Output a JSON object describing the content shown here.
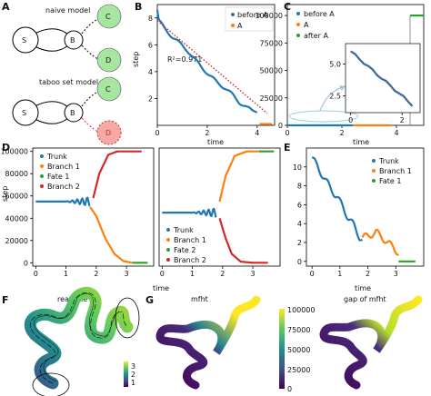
{
  "panel_labels": {
    "A": "A",
    "B": "B",
    "C": "C",
    "D": "D",
    "E": "E",
    "F": "F",
    "G": "G"
  },
  "panel_a": {
    "naive_title": "naive model",
    "taboo_title": "taboo set model",
    "nodes": {
      "s": "S",
      "b": "B",
      "c": "C",
      "d": "D"
    },
    "colors": {
      "green": "#a6e6a0",
      "red": "#f4a9a3",
      "white": "#ffffff"
    }
  },
  "panel_b": {
    "annotation": "R²=0.971",
    "xlabel": "time",
    "ylabel": "step",
    "xticks": [
      "0",
      "2",
      "4"
    ],
    "yticks": [
      "2",
      "4",
      "6",
      "8"
    ],
    "legend": [
      "before A",
      "A"
    ]
  },
  "panel_c": {
    "xlabel": "time",
    "xticks": [
      "0",
      "2",
      "4"
    ],
    "yticks": [
      "0",
      "25000",
      "50000",
      "75000",
      "100000"
    ],
    "legend": [
      "before A",
      "A",
      "after A"
    ],
    "inset_xticks": [
      "0",
      "2"
    ],
    "inset_yticks": [
      "2.5",
      "5.0"
    ]
  },
  "panel_d": {
    "xlabel": "time",
    "ylabel": "step",
    "yticks": [
      "0",
      "20000",
      "40000",
      "60000",
      "80000",
      "100000"
    ],
    "xticks_left": [
      "0",
      "1",
      "2",
      "3"
    ],
    "xticks_right": [
      "0",
      "1",
      "2",
      "3"
    ],
    "legend_left": [
      "Trunk",
      "Branch 1",
      "Fate 1",
      "Branch 2"
    ],
    "legend_right": [
      "Trunk",
      "Branch 1",
      "Fate 2",
      "Branch 2"
    ]
  },
  "panel_e": {
    "xlabel": "time",
    "xticks": [
      "0",
      "1",
      "2",
      "3"
    ],
    "yticks": [
      "0",
      "2",
      "4",
      "6",
      "8",
      "10"
    ],
    "legend": [
      "Trunk",
      "Branch 1",
      "Fate 1"
    ]
  },
  "panel_f": {
    "title": "realtime",
    "cbar_ticks": [
      "3",
      "2",
      "1"
    ]
  },
  "panel_g": {
    "title_left": "mfht",
    "title_right": "gap of mfht",
    "cbar_ticks": [
      "100000",
      "75000",
      "50000",
      "25000",
      "0"
    ]
  },
  "colors": {
    "blue": "#1f77b4",
    "orange": "#ff7f0e",
    "green": "#2ca02c",
    "red": "#d62728",
    "fit": "#d62728"
  },
  "chart_data": [
    {
      "panel": "B",
      "type": "line",
      "xlabel": "time",
      "ylabel": "step",
      "xlim": [
        0,
        4.7
      ],
      "ylim": [
        0,
        9
      ],
      "series": [
        {
          "name": "before A",
          "x": [
            0.0,
            0.05,
            0.1,
            0.3,
            0.6,
            0.9,
            1.2,
            1.5,
            1.8,
            2.1,
            2.4,
            2.7,
            3.0,
            3.3,
            3.6,
            3.8,
            4.0
          ],
          "y": [
            8.6,
            7.9,
            7.7,
            7.2,
            6.6,
            6.1,
            5.6,
            4.9,
            4.3,
            3.7,
            3.2,
            2.8,
            2.3,
            1.7,
            1.3,
            1.1,
            1.1
          ]
        },
        {
          "name": "A",
          "x": [
            4.1,
            4.6
          ],
          "y": [
            0.1,
            0.1
          ]
        }
      ],
      "fit": {
        "x": [
          0,
          4.4
        ],
        "y": [
          7.8,
          0.9
        ]
      }
    },
    {
      "panel": "C",
      "type": "line",
      "xlabel": "time",
      "xlim": [
        0,
        5
      ],
      "ylim": [
        0,
        110000
      ],
      "series": [
        {
          "name": "before A",
          "x": [
            0,
            2.4
          ],
          "y": [
            0,
            0
          ]
        },
        {
          "name": "A",
          "x": [
            2.4,
            3.8
          ],
          "y": [
            0,
            0
          ]
        },
        {
          "name": "after A",
          "x": [
            4.5,
            5.0
          ],
          "y": [
            100000,
            100000
          ]
        }
      ],
      "inset": {
        "x": [
          0,
          2.4
        ],
        "y": [
          6.0,
          1.8
        ],
        "xticks": [
          "0",
          "2"
        ],
        "yticks": [
          "2.5",
          "5.0"
        ]
      }
    },
    {
      "panel": "D-left",
      "type": "line",
      "xlabel": "time",
      "ylabel": "step",
      "xlim": [
        -0.1,
        3.9
      ],
      "ylim": [
        -3000,
        103000
      ],
      "series": [
        {
          "name": "Trunk",
          "x": [
            0,
            1.0,
            1.4,
            1.8
          ],
          "y": [
            55000,
            55000,
            55000,
            55000
          ]
        },
        {
          "name": "Branch 1",
          "x": [
            1.8,
            2.0,
            2.3,
            2.6,
            2.9,
            3.2
          ],
          "y": [
            50000,
            42000,
            22000,
            8000,
            1500,
            0
          ]
        },
        {
          "name": "Fate 1",
          "x": [
            3.2,
            3.7
          ],
          "y": [
            0,
            0
          ]
        },
        {
          "name": "Branch 2",
          "x": [
            1.9,
            2.1,
            2.4,
            2.7,
            3.0,
            3.5
          ],
          "y": [
            58000,
            80000,
            97000,
            100000,
            100000,
            100000
          ]
        }
      ]
    },
    {
      "panel": "D-right",
      "type": "line",
      "xlabel": "time",
      "xlim": [
        -0.1,
        3.9
      ],
      "ylim": [
        -3000,
        103000
      ],
      "series": [
        {
          "name": "Trunk",
          "x": [
            0,
            1.0,
            1.4,
            1.8
          ],
          "y": [
            45000,
            45000,
            45000,
            45000
          ]
        },
        {
          "name": "Branch 1",
          "x": [
            1.9,
            2.1,
            2.4,
            2.8,
            3.2
          ],
          "y": [
            55000,
            78000,
            96000,
            100000,
            100000
          ]
        },
        {
          "name": "Fate 2",
          "x": [
            3.2,
            3.7
          ],
          "y": [
            100000,
            100000
          ]
        },
        {
          "name": "Branch 2",
          "x": [
            1.9,
            2.1,
            2.3,
            2.6,
            3.0,
            3.5
          ],
          "y": [
            40000,
            22000,
            8000,
            1000,
            0,
            0
          ]
        }
      ]
    },
    {
      "panel": "E",
      "type": "line",
      "xlabel": "time",
      "xlim": [
        -0.2,
        4.0
      ],
      "ylim": [
        -0.5,
        12
      ],
      "series": [
        {
          "name": "Trunk",
          "x": [
            0,
            0.1,
            0.3,
            0.5,
            0.7,
            0.9,
            1.1,
            1.3,
            1.5,
            1.7,
            1.8
          ],
          "y": [
            11,
            10.5,
            9.5,
            8.5,
            7.6,
            6.8,
            5.8,
            4.6,
            3.8,
            2.6,
            2.3
          ]
        },
        {
          "name": "Branch 1",
          "x": [
            1.8,
            2.0,
            2.3,
            2.6,
            2.9,
            3.1
          ],
          "y": [
            2.5,
            2.7,
            3.1,
            2.3,
            1.5,
            0.9
          ]
        },
        {
          "name": "Fate 1",
          "x": [
            3.1,
            3.7
          ],
          "y": [
            0,
            0
          ]
        }
      ]
    }
  ]
}
